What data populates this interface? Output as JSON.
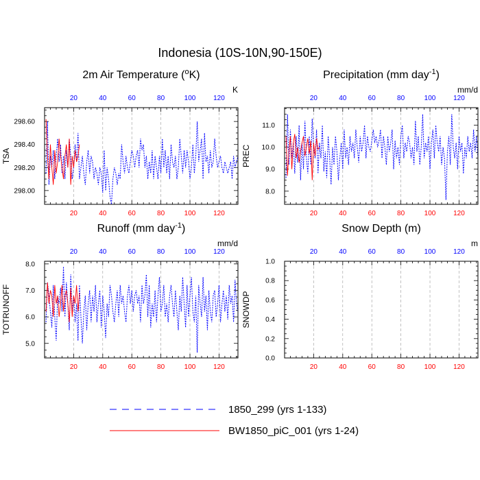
{
  "title": "Indonesia (10S-10N,90-150E)",
  "colors": {
    "series1": "#0000ff",
    "series2": "#ff0000",
    "axis_top": "#0000ff",
    "axis_bottom": "#ff0000",
    "grid": "#999999"
  },
  "legend": [
    {
      "label": "1850_299 (yrs 1-133)",
      "style": "dashed",
      "color": "#0000ff"
    },
    {
      "label": "BW1850_piC_001 (yrs 1-24)",
      "style": "solid",
      "color": "#ff0000"
    }
  ],
  "chart_data": [
    {
      "type": "line",
      "title": "2m Air Temperature (",
      "title_super": "o",
      "title_rest": "K)",
      "units": "K",
      "ylabel": "TSA",
      "xlim": [
        0,
        133
      ],
      "ylim": [
        297.88,
        298.72
      ],
      "yticks": [
        298.0,
        298.2,
        298.4,
        298.6
      ],
      "ytick_labels": [
        "298.00",
        "298.20",
        "298.40",
        "298.60"
      ],
      "xticks": [
        20,
        40,
        60,
        80,
        100,
        120
      ],
      "series": [
        {
          "name": "1850_299 (yrs 1-133)",
          "values": [
            298.15,
            298.6,
            298.05,
            298.3,
            298.2,
            298.35,
            298.1,
            298.3,
            298.45,
            298.25,
            298.4,
            298.15,
            298.3,
            298.1,
            298.35,
            298.2,
            298.45,
            298.3,
            298.1,
            298.2,
            298.4,
            298.25,
            298.5,
            298.1,
            298.2,
            298.3,
            298.15,
            298.05,
            298.25,
            298.35,
            298.15,
            298.3,
            298.25,
            298.1,
            298.2,
            298.15,
            298.05,
            298.2,
            298.15,
            297.98,
            298.35,
            298.0,
            298.2,
            298.1,
            297.95,
            297.88,
            298.1,
            298.2,
            298.15,
            298.05,
            298.15,
            298.1,
            298.4,
            298.25,
            298.15,
            298.3,
            298.2,
            298.15,
            298.25,
            298.35,
            298.3,
            298.2,
            298.3,
            298.35,
            298.2,
            298.45,
            298.35,
            298.4,
            298.2,
            298.3,
            298.1,
            298.25,
            298.15,
            298.35,
            298.1,
            298.3,
            298.2,
            298.1,
            298.3,
            298.15,
            298.45,
            298.2,
            298.35,
            298.15,
            298.3,
            298.1,
            298.4,
            298.25,
            298.2,
            298.3,
            298.1,
            298.2,
            298.45,
            298.3,
            298.15,
            298.35,
            298.2,
            298.35,
            298.25,
            298.1,
            298.2,
            298.4,
            298.15,
            298.3,
            298.6,
            298.25,
            298.35,
            298.45,
            298.1,
            298.5,
            298.25,
            298.3,
            298.15,
            298.35,
            298.2,
            298.25,
            298.45,
            298.3,
            298.2,
            298.25,
            298.3,
            298.2,
            298.15,
            298.25,
            298.2,
            298.15,
            298.2,
            298.25,
            298.1,
            298.3,
            298.2,
            298.25,
            298.3
          ]
        },
        {
          "name": "BW1850_piC_001 (yrs 1-24)",
          "values": [
            298.62,
            298.3,
            298.1,
            298.4,
            298.2,
            298.05,
            298.35,
            298.15,
            298.25,
            298.45,
            298.3,
            298.2,
            298.1,
            298.3,
            298.4,
            298.2,
            298.45,
            298.05,
            298.3,
            298.2,
            298.35,
            298.25,
            298.3,
            298.4
          ]
        }
      ]
    },
    {
      "type": "line",
      "title": "Precipitation (mm day",
      "title_super": "-1",
      "title_rest": ")",
      "units": "mm/d",
      "ylabel": "PREC",
      "xlim": [
        0,
        133
      ],
      "ylim": [
        7.4,
        11.8
      ],
      "yticks": [
        8.0,
        9.0,
        10.0,
        11.0
      ],
      "ytick_labels": [
        "8.0",
        "9.0",
        "10.0",
        "11.0"
      ],
      "xticks": [
        20,
        40,
        60,
        80,
        100,
        120
      ],
      "series": [
        {
          "name": "1850_299 (yrs 1-133)",
          "values": [
            8.6,
            11.5,
            9.2,
            10.8,
            9.5,
            10.2,
            8.8,
            10.5,
            9.3,
            11.0,
            8.5,
            10.2,
            9.0,
            11.2,
            9.5,
            8.8,
            10.5,
            9.2,
            11.3,
            10.0,
            9.5,
            10.8,
            8.8,
            10.2,
            9.5,
            11.0,
            8.9,
            9.8,
            8.6,
            10.5,
            9.5,
            8.3,
            10.0,
            9.2,
            10.5,
            9.8,
            8.5,
            9.5,
            10.2,
            9.0,
            10.8,
            9.5,
            10.0,
            9.2,
            10.5,
            9.8,
            10.2,
            9.5,
            10.8,
            10.0,
            9.3,
            10.5,
            9.8,
            10.2,
            11.0,
            9.5,
            10.5,
            10.0,
            9.8,
            10.3,
            10.8,
            10.2,
            10.5,
            10.0,
            10.3,
            10.8,
            9.5,
            10.5,
            10.0,
            9.2,
            10.5,
            9.8,
            10.2,
            10.8,
            9.0,
            10.3,
            9.5,
            10.0,
            9.2,
            10.5,
            11.0,
            9.5,
            10.2,
            9.8,
            10.5,
            10.2,
            9.5,
            10.0,
            9.2,
            11.2,
            9.8,
            10.5,
            9.2,
            10.0,
            11.5,
            9.5,
            10.2,
            9.8,
            10.5,
            9.0,
            10.2,
            10.8,
            9.5,
            11.0,
            10.2,
            9.8,
            10.5,
            9.2,
            10.0,
            9.5,
            7.6,
            9.8,
            10.5,
            9.2,
            11.5,
            10.0,
            9.5,
            10.2,
            9.0,
            10.5,
            9.8,
            10.2,
            8.8,
            10.0,
            9.5,
            10.5,
            9.8,
            10.2,
            9.5,
            10.8,
            9.8,
            10.5,
            9.5
          ]
        },
        {
          "name": "BW1850_piC_001 (yrs 1-24)",
          "values": [
            10.5,
            8.7,
            9.8,
            10.5,
            9.0,
            10.2,
            10.6,
            9.5,
            10.0,
            9.3,
            9.8,
            10.2,
            10.5,
            9.6,
            10.0,
            10.4,
            9.7,
            10.3,
            8.5,
            10.2,
            9.6,
            10.4,
            9.9,
            10.0
          ]
        }
      ]
    },
    {
      "type": "line",
      "title": "Runoff (mm day",
      "title_super": "-1",
      "title_rest": ")",
      "units": "mm/d",
      "ylabel": "TOTRUNOFF",
      "xlim": [
        0,
        133
      ],
      "ylim": [
        4.45,
        8.1
      ],
      "yticks": [
        5.0,
        6.0,
        7.0,
        8.0
      ],
      "ytick_labels": [
        "5.0",
        "6.0",
        "7.0",
        "8.0"
      ],
      "xticks": [
        20,
        40,
        60,
        80,
        100,
        120
      ],
      "series": [
        {
          "name": "1850_299 (yrs 1-133)",
          "values": [
            5.8,
            7.3,
            6.8,
            6.2,
            5.6,
            7.2,
            6.0,
            5.1,
            6.8,
            6.5,
            7.1,
            6.2,
            7.9,
            6.0,
            7.3,
            6.5,
            5.5,
            7.6,
            6.2,
            6.8,
            5.8,
            6.5,
            5.1,
            7.2,
            6.0,
            5.0,
            6.2,
            6.8,
            5.5,
            6.5,
            7.0,
            5.8,
            6.8,
            6.2,
            7.2,
            5.8,
            6.5,
            7.0,
            5.6,
            6.8,
            6.2,
            5.2,
            6.5,
            6.0,
            7.2,
            6.8,
            6.2,
            5.8,
            6.5,
            7.0,
            6.0,
            7.2,
            6.5,
            6.8,
            6.2,
            5.8,
            6.8,
            7.2,
            6.5,
            7.0,
            6.2,
            6.8,
            7.0,
            6.5,
            6.8,
            5.8,
            7.2,
            6.5,
            6.8,
            7.6,
            6.0,
            7.2,
            5.6,
            6.5,
            6.0,
            7.0,
            5.8,
            6.8,
            7.5,
            6.2,
            6.5,
            7.2,
            6.0,
            6.5,
            5.8,
            6.8,
            7.2,
            6.5,
            6.0,
            7.0,
            6.2,
            5.5,
            6.8,
            6.2,
            7.5,
            6.5,
            5.6,
            7.2,
            6.0,
            6.8,
            7.5,
            6.2,
            5.8,
            6.8,
            4.65,
            7.2,
            6.5,
            6.0,
            7.5,
            6.2,
            6.8,
            5.5,
            7.0,
            6.2,
            5.8,
            6.8,
            7.0,
            6.0,
            6.5,
            7.2,
            5.8,
            6.5,
            7.0,
            6.2,
            6.8,
            5.9,
            7.2,
            6.5,
            6.8,
            5.8,
            7.4,
            6.5,
            6.2
          ]
        },
        {
          "name": "BW1850_piC_001 (yrs 1-24)",
          "values": [
            6.2,
            7.3,
            6.5,
            7.0,
            6.8,
            6.0,
            7.2,
            6.5,
            6.8,
            6.0,
            6.5,
            7.2,
            6.2,
            6.8,
            7.0,
            6.5,
            5.8,
            7.1,
            6.0,
            6.8,
            6.5,
            7.2,
            6.2,
            6.9
          ]
        }
      ]
    },
    {
      "type": "line",
      "title": "Snow Depth (m)",
      "title_super": "",
      "title_rest": "",
      "units": "m",
      "ylabel": "SNOWDP",
      "xlim": [
        0,
        133
      ],
      "ylim": [
        0.0,
        1.0
      ],
      "yticks": [
        0.0,
        0.2,
        0.4,
        0.6,
        0.8,
        1.0
      ],
      "ytick_labels": [
        "0.0",
        "0.2",
        "0.4",
        "0.6",
        "0.8",
        "1.0"
      ],
      "xticks": [
        20,
        40,
        60,
        80,
        100,
        120
      ],
      "series": []
    }
  ]
}
